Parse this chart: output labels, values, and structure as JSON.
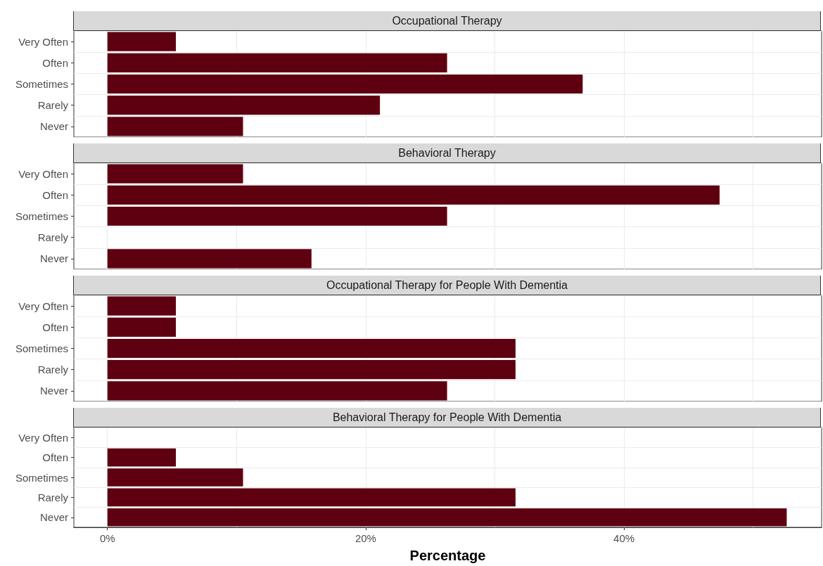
{
  "chart_data": [
    {
      "type": "bar",
      "orientation": "horizontal",
      "title": "Occupational Therapy",
      "categories": [
        "Very Often",
        "Often",
        "Sometimes",
        "Rarely",
        "Never"
      ],
      "series": [
        {
          "color": "#5e0010",
          "values": [
            5.3,
            26.3,
            36.8,
            21.1,
            10.5
          ]
        }
      ],
      "xlim": [
        -2.6,
        55.3
      ],
      "xticks": [
        {
          "value": 0,
          "label": null
        },
        {
          "value": 10,
          "label": null
        },
        {
          "value": 20,
          "label": null
        },
        {
          "value": 30,
          "label": null
        },
        {
          "value": 40,
          "label": null
        },
        {
          "value": 50,
          "label": null
        }
      ],
      "grid": true,
      "tick_labels": "y"
    },
    {
      "type": "bar",
      "orientation": "horizontal",
      "title": "Behavioral Therapy",
      "categories": [
        "Very Often",
        "Often",
        "Sometimes",
        "Rarely",
        "Never"
      ],
      "series": [
        {
          "color": "#5e0010",
          "values": [
            10.5,
            47.4,
            26.3,
            0,
            15.8
          ]
        }
      ],
      "xlim": [
        -2.6,
        55.3
      ],
      "xticks": [
        {
          "value": 0,
          "label": null
        },
        {
          "value": 10,
          "label": null
        },
        {
          "value": 20,
          "label": null
        },
        {
          "value": 30,
          "label": null
        },
        {
          "value": 40,
          "label": null
        },
        {
          "value": 50,
          "label": null
        }
      ],
      "grid": true,
      "tick_labels": "y"
    },
    {
      "type": "bar",
      "orientation": "horizontal",
      "title": "Occupational Therapy for People With Dementia",
      "categories": [
        "Very Often",
        "Often",
        "Sometimes",
        "Rarely",
        "Never"
      ],
      "series": [
        {
          "color": "#5e0010",
          "values": [
            5.3,
            5.3,
            31.6,
            31.6,
            26.3
          ]
        }
      ],
      "xlim": [
        -2.6,
        55.3
      ],
      "xticks": [
        {
          "value": 0,
          "label": null
        },
        {
          "value": 10,
          "label": null
        },
        {
          "value": 20,
          "label": null
        },
        {
          "value": 30,
          "label": null
        },
        {
          "value": 40,
          "label": null
        },
        {
          "value": 50,
          "label": null
        }
      ],
      "grid": true,
      "tick_labels": "y"
    },
    {
      "type": "bar",
      "orientation": "horizontal",
      "title": "Behavioral Therapy for People With Dementia",
      "xlabel": "Percentage",
      "categories": [
        "Very Often",
        "Often",
        "Sometimes",
        "Rarely",
        "Never"
      ],
      "series": [
        {
          "color": "#5e0010",
          "values": [
            0,
            5.3,
            10.5,
            31.6,
            52.6
          ]
        }
      ],
      "xlim": [
        -2.6,
        55.3
      ],
      "xticks": [
        {
          "value": 0,
          "label": "0%"
        },
        {
          "value": 10,
          "label": null
        },
        {
          "value": 20,
          "label": "20%"
        },
        {
          "value": 30,
          "label": null
        },
        {
          "value": 40,
          "label": "40%"
        },
        {
          "value": 50,
          "label": null
        }
      ],
      "grid": true
    }
  ]
}
